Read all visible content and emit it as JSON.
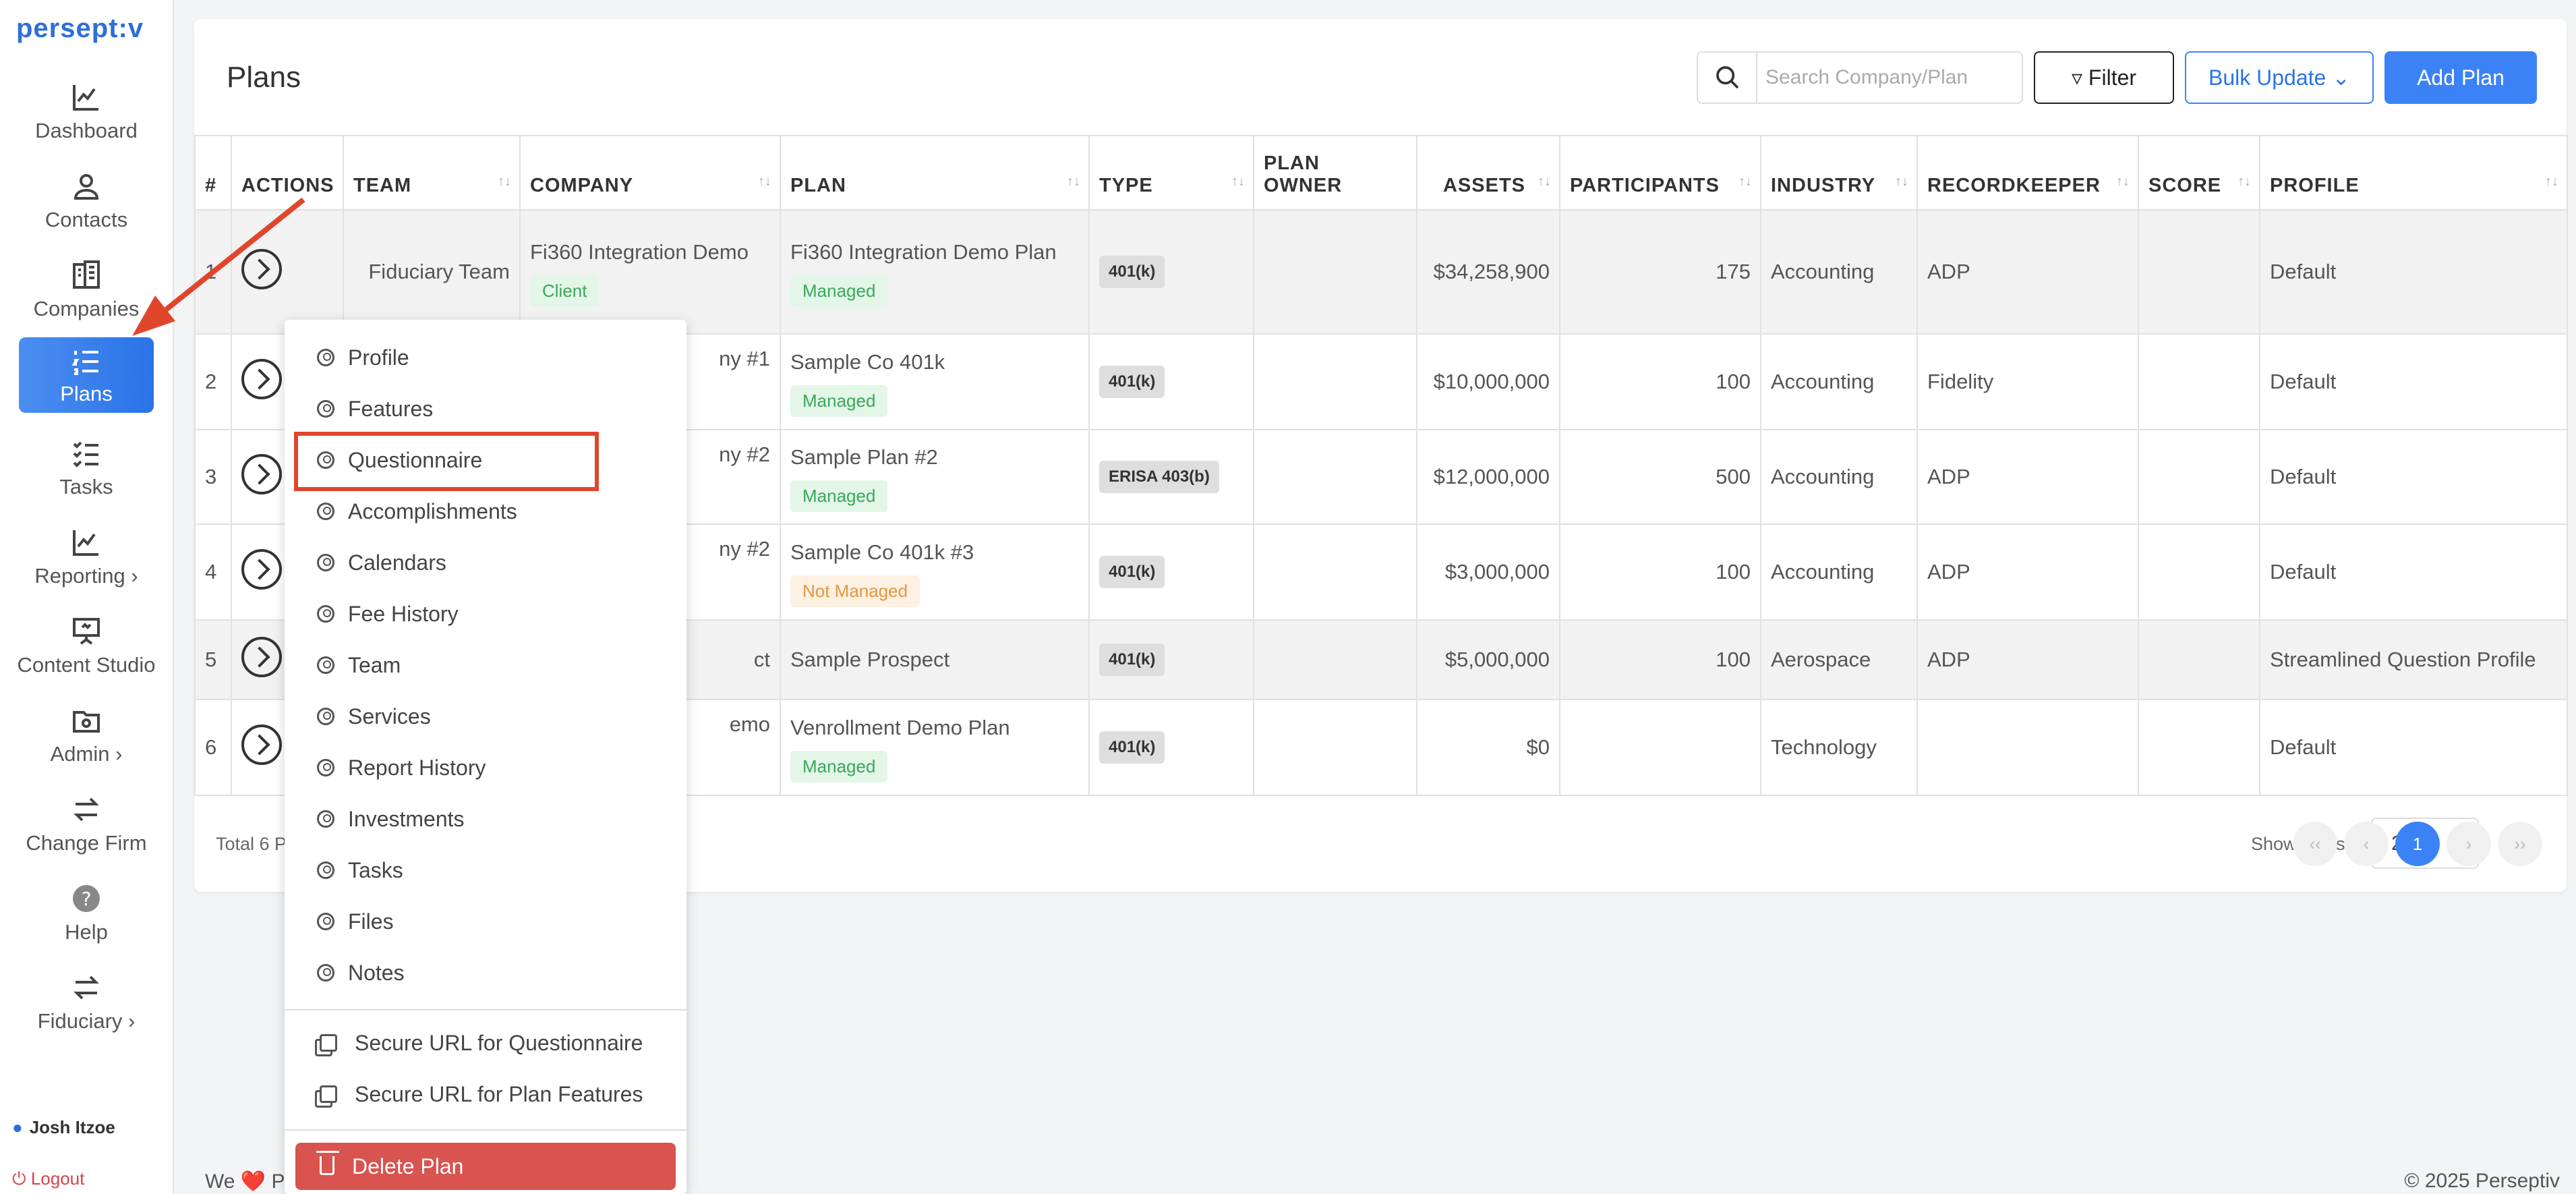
{
  "app": {
    "logo": "persept:v"
  },
  "sidebar": {
    "items": [
      {
        "label": "Dashboard",
        "icon": "line-chart-icon"
      },
      {
        "label": "Contacts",
        "icon": "person-icon"
      },
      {
        "label": "Companies",
        "icon": "building-icon"
      },
      {
        "label": "Plans",
        "icon": "list-icon",
        "active": true
      },
      {
        "label": "Tasks",
        "icon": "checklist-icon"
      },
      {
        "label": "Reporting",
        "icon": "chart-icon",
        "chevron": "›"
      },
      {
        "label": "Content Studio",
        "icon": "presentation-icon"
      },
      {
        "label": "Admin",
        "icon": "folder-gear-icon",
        "chevron": "›"
      },
      {
        "label": "Change Firm",
        "icon": "swap-icon"
      },
      {
        "label": "Help",
        "icon": "help-icon"
      },
      {
        "label": "Fiduciary",
        "icon": "swap-icon",
        "chevron": "›"
      }
    ],
    "user_name": "Josh Itzoe",
    "logout_label": "Logout"
  },
  "header": {
    "title": "Plans",
    "search_placeholder": "Search Company/Plan",
    "filter_label": "Filter",
    "bulk_update_label": "Bulk Update",
    "add_plan_label": "Add Plan"
  },
  "table": {
    "columns": [
      "#",
      "ACTIONS",
      "TEAM",
      "COMPANY",
      "PLAN",
      "TYPE",
      "PLAN OWNER",
      "ASSETS",
      "PARTICIPANTS",
      "INDUSTRY",
      "RECORDKEEPER",
      "SCORE",
      "PROFILE"
    ],
    "rows": [
      {
        "num": "1",
        "team": "Fiduciary Team",
        "company": "Fi360 Integration Demo",
        "company_tag": "Client",
        "plan": "Fi360 Integration Demo Plan",
        "plan_tag": "Managed",
        "type": "401(k)",
        "assets": "$34,258,900",
        "participants": "175",
        "industry": "Accounting",
        "recordkeeper": "ADP",
        "profile": "Default"
      },
      {
        "num": "2",
        "company": "ny #1",
        "plan": "Sample Co 401k",
        "plan_tag": "Managed",
        "type": "401(k)",
        "assets": "$10,000,000",
        "participants": "100",
        "industry": "Accounting",
        "recordkeeper": "Fidelity",
        "profile": "Default"
      },
      {
        "num": "3",
        "company": "ny #2",
        "plan": "Sample Plan #2",
        "plan_tag": "Managed",
        "type": "ERISA 403(b)",
        "assets": "$12,000,000",
        "participants": "500",
        "industry": "Accounting",
        "recordkeeper": "ADP",
        "profile": "Default"
      },
      {
        "num": "4",
        "company": "ny #2",
        "plan": "Sample Co 401k #3",
        "plan_tag": "Not Managed",
        "type": "401(k)",
        "assets": "$3,000,000",
        "participants": "100",
        "industry": "Accounting",
        "recordkeeper": "ADP",
        "profile": "Default"
      },
      {
        "num": "5",
        "company": "ct",
        "plan": "Sample Prospect",
        "type": "401(k)",
        "assets": "$5,000,000",
        "participants": "100",
        "industry": "Aerospace",
        "recordkeeper": "ADP",
        "profile": "Streamlined Question Profile"
      },
      {
        "num": "6",
        "company": "emo",
        "plan": "Venrollment Demo Plan",
        "plan_tag": "Managed",
        "type": "401(k)",
        "assets": "$0",
        "participants": "",
        "industry": "Technology",
        "recordkeeper": "",
        "profile": "Default"
      }
    ]
  },
  "footer": {
    "total_text": "Total 6 P",
    "show_items_label": "Show items",
    "per_page": "25",
    "current_page": "1",
    "pager": {
      "first": "‹‹",
      "prev": "‹",
      "next": "›",
      "last": "››"
    },
    "left_text": "We ❤️ P",
    "copyright": "© 2025 Perseptiv"
  },
  "menu": {
    "items": [
      "Profile",
      "Features",
      "Questionnaire",
      "Accomplishments",
      "Calendars",
      "Fee History",
      "Team",
      "Services",
      "Report History",
      "Investments",
      "Tasks",
      "Files",
      "Notes"
    ],
    "highlighted": "Questionnaire",
    "secure_items": [
      "Secure URL for Questionnaire",
      "Secure URL for Plan Features"
    ],
    "delete_label": "Delete Plan"
  },
  "colors": {
    "brand": "#2d6fd9",
    "accent": "#3b82f6",
    "annotation": "#e0462b",
    "danger": "#d9534f"
  }
}
